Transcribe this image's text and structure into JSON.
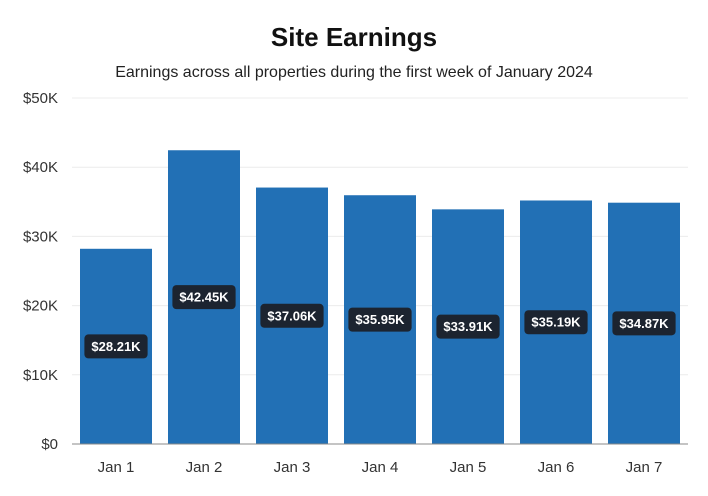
{
  "chart_data": {
    "type": "bar",
    "title": "Site Earnings",
    "subtitle": "Earnings across all properties during the first week of January 2024",
    "categories": [
      "Jan 1",
      "Jan 2",
      "Jan 3",
      "Jan 4",
      "Jan 5",
      "Jan 6",
      "Jan 7"
    ],
    "values": [
      28210,
      42450,
      37060,
      35950,
      33910,
      35190,
      34870
    ],
    "data_labels": [
      "$28.21K",
      "$42.45K",
      "$37.06K",
      "$35.95K",
      "$33.91K",
      "$35.19K",
      "$34.87K"
    ],
    "ylim": [
      0,
      50000
    ],
    "y_ticks": [
      0,
      10000,
      20000,
      30000,
      40000,
      50000
    ],
    "y_tick_labels": [
      "$0",
      "$10K",
      "$20K",
      "$30K",
      "$40K",
      "$50K"
    ],
    "grid": true,
    "legend": "none",
    "colors": {
      "bar": "#2270b5",
      "label_bg": "#1c2430",
      "grid": "#ececec",
      "axis": "#888888"
    }
  }
}
